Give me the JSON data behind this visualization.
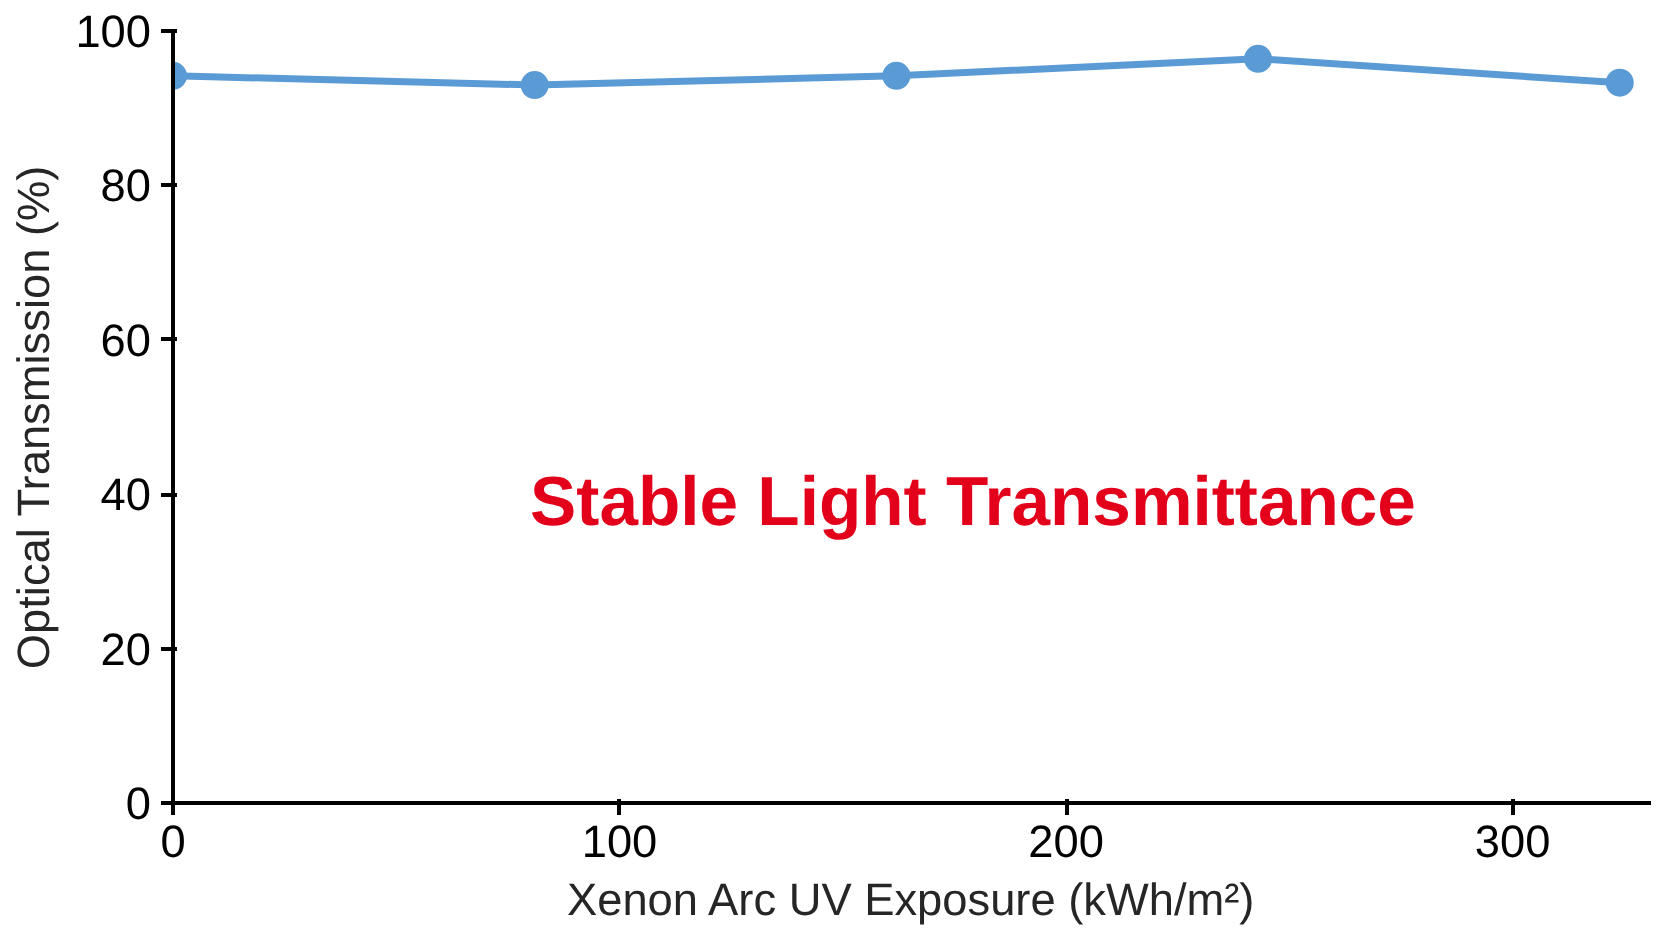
{
  "chart_data": {
    "type": "line",
    "xlabel": "Xenon Arc UV Exposure (kWh/m²)",
    "ylabel": "Optical Transmission (%)",
    "x": [
      0,
      81,
      162,
      243,
      324
    ],
    "series": [
      {
        "color": "#5b9bd5",
        "values": [
          94.2,
          93.0,
          94.2,
          96.4,
          93.3
        ]
      }
    ],
    "xlim": [
      0,
      331
    ],
    "xticks": [
      0,
      100,
      200,
      300
    ],
    "ylim": [
      0,
      100
    ],
    "yticks": [
      0,
      20,
      40,
      60,
      80,
      100
    ],
    "marker": "circle",
    "line_style": "solid",
    "grid": false,
    "annotations": [
      "Stable Light Transmittance"
    ]
  }
}
